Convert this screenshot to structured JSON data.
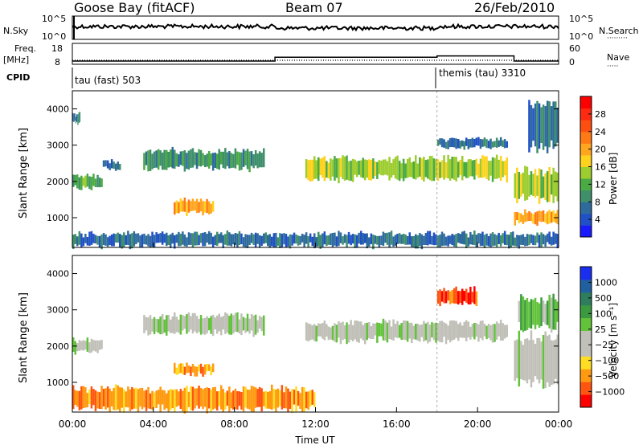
{
  "header": {
    "station": "Goose Bay (fitACF)",
    "beam": "Beam 07",
    "date": "26/Feb/2010"
  },
  "strips": {
    "nsky": {
      "left_label": "N.Sky",
      "left_ticks": [
        "10^5",
        "10^0"
      ],
      "right_ticks": [
        "10^5",
        "10^0"
      ],
      "right_label": "N.Search",
      "right_dots": "·········"
    },
    "freq": {
      "left_label_1": "Freq.",
      "left_label_2": "[MHz]",
      "left_ticks": [
        "18",
        "8"
      ],
      "right_ticks": [
        "60",
        "0"
      ],
      "right_label": "Nave",
      "right_dots": "·····"
    },
    "cpid": {
      "label": "CPID",
      "segments": [
        {
          "name": "tau (fast) 503",
          "start_hour": 0
        },
        {
          "name": "themis (tau) 3310",
          "start_hour": 18
        }
      ]
    }
  },
  "axes": {
    "ylabel": "Slant Range [km]",
    "yticks": [
      "1000",
      "2000",
      "3000",
      "4000"
    ],
    "xlabel": "Time UT",
    "xticks": [
      "00:00",
      "04:00",
      "08:00",
      "12:00",
      "16:00",
      "20:00",
      "00:00"
    ]
  },
  "colorbars": {
    "power": {
      "label": "Power [dB]",
      "ticks": [
        "4",
        "8",
        "12",
        "16",
        "20",
        "24",
        "28"
      ],
      "colors": [
        "#1a1aff",
        "#2050c8",
        "#2e6b9c",
        "#3f8f6b",
        "#4aaa44",
        "#9ccc2e",
        "#ffd21e",
        "#ffa51e",
        "#ff7a14",
        "#ff4f10",
        "#ff2a10",
        "#ff0000"
      ]
    },
    "velocity": {
      "label": "Velocity [m s⁻¹]",
      "ticks": [
        "1000",
        "500",
        "100",
        "25",
        "−25",
        "−100",
        "−500",
        "−1000"
      ],
      "colors": [
        "#1a2ef0",
        "#2060a0",
        "#2e7d5e",
        "#3b9a40",
        "#62c23a",
        "#c0c0b8",
        "#c0c0b8",
        "#ffdd22",
        "#ff9a10",
        "#ff5510",
        "#ff0000"
      ]
    }
  },
  "chart_data": {
    "type": "heatmap",
    "x_range_hours": [
      0,
      24
    ],
    "y_range_km": [
      180,
      4500
    ],
    "nsky_series_description": "",
    "freq_mhz_step": [
      {
        "from_hour": 0,
        "to_hour": 10,
        "value": 10.5
      },
      {
        "from_hour": 10,
        "to_hour": 18,
        "value": 13.5
      },
      {
        "from_hour": 18,
        "to_hour": 21.8,
        "value": 14.5
      },
      {
        "from_hour": 21.8,
        "to_hour": 24,
        "value": 10.5
      }
    ],
    "power_regions": [
      {
        "t0": 0.0,
        "t1": 0.4,
        "r0": 3600,
        "r1": 3900,
        "level": 2
      },
      {
        "t0": 0.0,
        "t1": 1.5,
        "r0": 1800,
        "r1": 2200,
        "level": 4
      },
      {
        "t0": 1.5,
        "t1": 2.4,
        "r0": 2300,
        "r1": 2600,
        "level": 2
      },
      {
        "t0": 3.5,
        "t1": 9.5,
        "r0": 2300,
        "r1": 2900,
        "level": 3
      },
      {
        "t0": 5.0,
        "t1": 7.0,
        "r0": 1100,
        "r1": 1500,
        "level": 7
      },
      {
        "t0": 11.5,
        "t1": 21.5,
        "r0": 2000,
        "r1": 2700,
        "level": 5
      },
      {
        "t0": 18.0,
        "t1": 21.5,
        "r0": 2900,
        "r1": 3200,
        "level": 2
      },
      {
        "t0": 21.8,
        "t1": 24.0,
        "r0": 800,
        "r1": 1200,
        "level": 7
      },
      {
        "t0": 21.8,
        "t1": 24.0,
        "r0": 1400,
        "r1": 2400,
        "level": 5
      },
      {
        "t0": 22.5,
        "t1": 24.0,
        "r0": 2800,
        "r1": 4300,
        "level": 2
      },
      {
        "t0": 0.0,
        "t1": 24.0,
        "r0": 180,
        "r1": 600,
        "level": 2
      }
    ],
    "velocity_regions": [
      {
        "t0": 0.0,
        "t1": 1.5,
        "r0": 1800,
        "r1": 2200,
        "level": 5
      },
      {
        "t0": 3.5,
        "t1": 9.5,
        "r0": 2300,
        "r1": 2900,
        "level": 5
      },
      {
        "t0": 5.0,
        "t1": 7.0,
        "r0": 1200,
        "r1": 1500,
        "level": 8
      },
      {
        "t0": 11.5,
        "t1": 21.5,
        "r0": 2100,
        "r1": 2700,
        "level": 5
      },
      {
        "t0": 18.0,
        "t1": 20.0,
        "r0": 3100,
        "r1": 3600,
        "level": 9
      },
      {
        "t0": 21.8,
        "t1": 24.0,
        "r0": 800,
        "r1": 2400,
        "level": 5
      },
      {
        "t0": 22.0,
        "t1": 24.0,
        "r0": 2400,
        "r1": 3400,
        "level": 4
      },
      {
        "t0": 0.0,
        "t1": 12.0,
        "r0": 180,
        "r1": 900,
        "level": 8
      }
    ]
  }
}
